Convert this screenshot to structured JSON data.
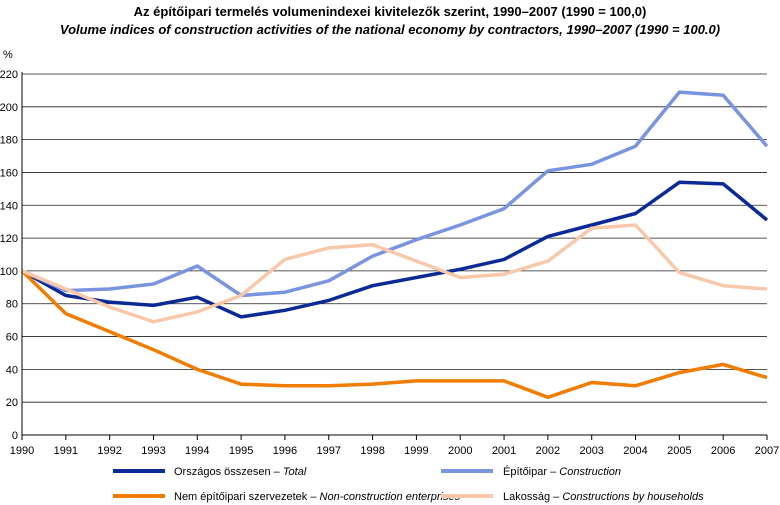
{
  "chart_data": {
    "type": "line",
    "title": "Az építőipari termelés volumenindexei kivitelezők szerint, 1990–2007 (1990 = 100,0)",
    "subtitle": "Volume indices of construction activities of the national economy by contractors, 1990–2007 (1990 = 100.0)",
    "ylabel": "%",
    "ylim": [
      0,
      220
    ],
    "yticks": [
      0,
      20,
      40,
      60,
      80,
      100,
      120,
      140,
      160,
      180,
      200,
      220
    ],
    "x": [
      "1990",
      "1991",
      "1992",
      "1993",
      "1994",
      "1995",
      "1996",
      "1997",
      "1998",
      "1999",
      "2000",
      "2001",
      "2002",
      "2003",
      "2004",
      "2005",
      "2006",
      "2007"
    ],
    "grid": true,
    "legend_position": "bottom",
    "series": [
      {
        "key": "total",
        "name_hu": "Országos összesen – ",
        "name_en": "Total",
        "color": "#0b2a96",
        "width": 3.5,
        "values": [
          100,
          85,
          81,
          79,
          84,
          72,
          76,
          82,
          91,
          96,
          101,
          107,
          121,
          128,
          135,
          154,
          153,
          131
        ]
      },
      {
        "key": "construction",
        "name_hu": "Építőipar – ",
        "name_en": "Construction",
        "color": "#7b94e0",
        "width": 3.5,
        "values": [
          100,
          88,
          89,
          92,
          103,
          85,
          87,
          94,
          109,
          119,
          128,
          138,
          161,
          165,
          176,
          209,
          207,
          176
        ]
      },
      {
        "key": "nonconstruction",
        "name_hu": "Nem építőipari szervezetek – ",
        "name_en": "Non-construction enterprises",
        "color": "#f07d00",
        "width": 3.5,
        "values": [
          100,
          74,
          63,
          52,
          40,
          31,
          30,
          30,
          31,
          33,
          33,
          33,
          23,
          32,
          30,
          38,
          43,
          35
        ]
      },
      {
        "key": "households",
        "name_hu": "Lakosság – ",
        "name_en": "Constructions by households",
        "color": "#f8c8aa",
        "width": 3.5,
        "values": [
          100,
          89,
          78,
          69,
          75,
          85,
          107,
          114,
          116,
          106,
          96,
          98,
          106,
          126,
          128,
          99,
          91,
          89
        ]
      }
    ]
  }
}
